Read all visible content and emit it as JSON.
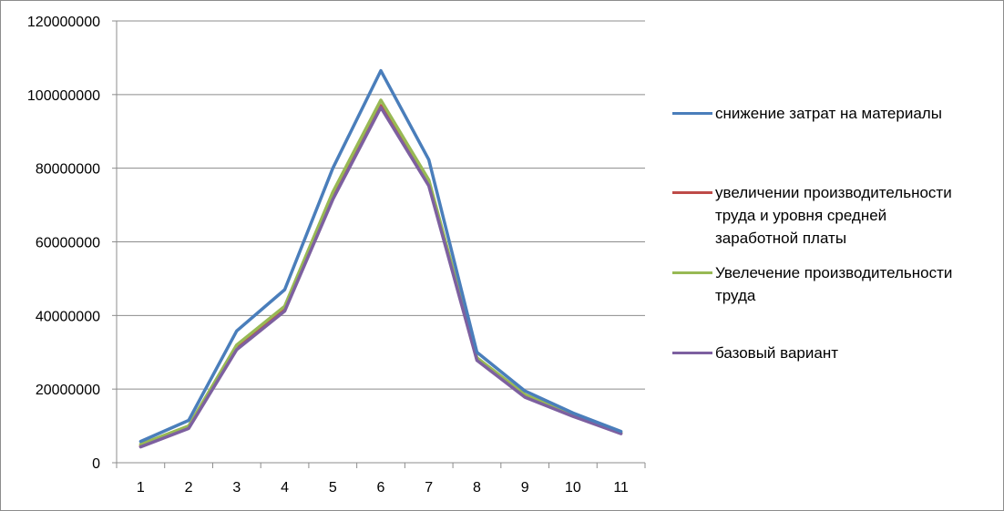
{
  "chart_data": {
    "type": "line",
    "title": "",
    "xlabel": "",
    "ylabel": "",
    "x": [
      1,
      2,
      3,
      4,
      5,
      6,
      7,
      8,
      9,
      10,
      11
    ],
    "x_labels": [
      "1",
      "2",
      "3",
      "4",
      "5",
      "6",
      "7",
      "8",
      "9",
      "10",
      "11"
    ],
    "ylim": [
      0,
      120000000
    ],
    "y_ticks": [
      0,
      20000000,
      40000000,
      60000000,
      80000000,
      100000000,
      120000000
    ],
    "y_tick_labels": [
      "0",
      "20000000",
      "40000000",
      "60000000",
      "80000000",
      "100000000",
      "120000000"
    ],
    "grid": "horizontal",
    "legend_position": "right",
    "series": [
      {
        "name": "снижение затрат на материалы",
        "color": "#4a7ebb",
        "values": [
          5800000,
          11500000,
          35800000,
          47000000,
          80000000,
          106500000,
          82300000,
          30000000,
          19500000,
          13500000,
          8500000
        ]
      },
      {
        "name": "увеличении производительности труда и уровня средней заработной платы",
        "color": "#be4b48",
        "values": [
          4500000,
          9500000,
          31000000,
          41500000,
          72000000,
          97000000,
          75500000,
          28000000,
          18000000,
          12800000,
          8000000
        ]
      },
      {
        "name": "Увелечение производительности труда",
        "color": "#98b954",
        "values": [
          5000000,
          10000000,
          32000000,
          42500000,
          73500000,
          98500000,
          76800000,
          28500000,
          18500000,
          13000000,
          8200000
        ]
      },
      {
        "name": "базовый вариант",
        "color": "#7d60a0",
        "values": [
          4300000,
          9300000,
          30700000,
          41200000,
          71500000,
          96500000,
          75200000,
          27800000,
          17800000,
          12600000,
          7900000
        ]
      }
    ]
  },
  "legend": {
    "items": [
      {
        "lines": [
          "снижение затрат на материалы"
        ]
      },
      {
        "lines": [
          "увеличении производительности",
          "труда и уровня средней",
          "заработной платы"
        ]
      },
      {
        "lines": [
          "Увелечение производительности",
          "труда"
        ]
      },
      {
        "lines": [
          "базовый вариант"
        ]
      }
    ]
  }
}
